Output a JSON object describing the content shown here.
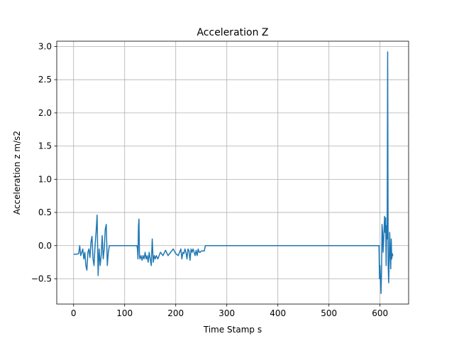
{
  "chart_data": {
    "type": "line",
    "title": "Acceleration Z",
    "xlabel": "Time Stamp s",
    "ylabel": "Acceleration z m/s2",
    "xlim": [
      -33,
      656
    ],
    "ylim": [
      -0.88,
      3.08
    ],
    "xticks": [
      0,
      100,
      200,
      300,
      400,
      500,
      600
    ],
    "yticks": [
      -0.5,
      0.0,
      0.5,
      1.0,
      1.5,
      2.0,
      2.5,
      3.0
    ],
    "xtick_labels": [
      "0",
      "100",
      "200",
      "300",
      "400",
      "500",
      "600"
    ],
    "ytick_labels": [
      "−0.5",
      "0.0",
      "0.5",
      "1.0",
      "1.5",
      "2.0",
      "2.5",
      "3.0"
    ],
    "grid": true,
    "line_color": "#1f77b4",
    "series": [
      {
        "x": [
          0,
          5,
          10,
          12,
          14,
          16,
          18,
          20,
          22,
          24,
          26,
          28,
          30,
          32,
          34,
          36,
          38,
          40,
          42,
          44,
          46,
          48,
          50,
          52,
          54,
          56,
          58,
          60,
          62,
          64,
          66,
          68,
          70,
          72,
          74,
          75,
          80,
          90,
          100,
          110,
          120,
          124,
          125,
          126,
          127,
          128,
          129,
          130,
          132,
          134,
          136,
          138,
          140,
          142,
          144,
          146,
          148,
          150,
          152,
          154,
          156,
          158,
          160,
          162,
          165,
          170,
          175,
          180,
          185,
          190,
          195,
          200,
          205,
          210,
          212,
          214,
          216,
          218,
          220,
          222,
          224,
          226,
          228,
          230,
          232,
          234,
          236,
          238,
          240,
          242,
          244,
          246,
          248,
          250,
          252,
          254,
          256,
          258,
          260,
          300,
          400,
          500,
          590,
          598,
          599,
          600,
          602,
          603,
          604,
          605,
          606,
          607,
          608,
          609,
          610,
          611,
          612,
          613,
          614,
          615,
          616,
          617,
          618,
          619,
          620,
          621,
          622,
          623,
          624,
          625,
          626
        ],
        "y": [
          -0.13,
          -0.13,
          -0.12,
          0.0,
          -0.15,
          -0.1,
          -0.05,
          -0.2,
          -0.1,
          -0.3,
          -0.37,
          -0.1,
          -0.05,
          -0.18,
          0.05,
          0.14,
          -0.2,
          -0.3,
          0.0,
          0.2,
          0.46,
          -0.45,
          -0.05,
          -0.3,
          -0.15,
          0.15,
          -0.2,
          -0.05,
          0.25,
          0.32,
          -0.3,
          -0.1,
          0.0,
          0.0,
          0.0,
          0.0,
          0.0,
          0.0,
          0.0,
          0.0,
          0.0,
          0.0,
          -0.05,
          -0.2,
          0.3,
          0.4,
          -0.15,
          -0.2,
          -0.15,
          -0.22,
          -0.15,
          -0.2,
          -0.1,
          -0.2,
          -0.15,
          -0.25,
          -0.1,
          -0.2,
          -0.3,
          0.1,
          -0.25,
          -0.15,
          -0.2,
          -0.15,
          -0.2,
          -0.1,
          -0.15,
          -0.07,
          -0.15,
          -0.1,
          -0.05,
          -0.12,
          -0.15,
          -0.05,
          -0.2,
          -0.1,
          -0.12,
          -0.05,
          -0.1,
          -0.2,
          -0.05,
          -0.08,
          -0.22,
          -0.05,
          -0.1,
          -0.05,
          -0.1,
          -0.15,
          -0.07,
          -0.15,
          -0.05,
          -0.1,
          -0.1,
          -0.08,
          -0.08,
          -0.08,
          -0.08,
          0.0,
          0.0,
          0.0,
          0.0,
          0.0,
          0.0,
          0.0,
          -0.5,
          -0.3,
          -0.72,
          -0.4,
          0.32,
          0.2,
          -0.1,
          0.05,
          0.25,
          0.44,
          0.2,
          0.42,
          -0.3,
          0.3,
          0.1,
          2.92,
          -0.3,
          -0.56,
          -0.2,
          0.2,
          -0.1,
          -0.35,
          0.1,
          -0.2,
          -0.12,
          -0.15,
          -0.15
        ]
      }
    ]
  }
}
